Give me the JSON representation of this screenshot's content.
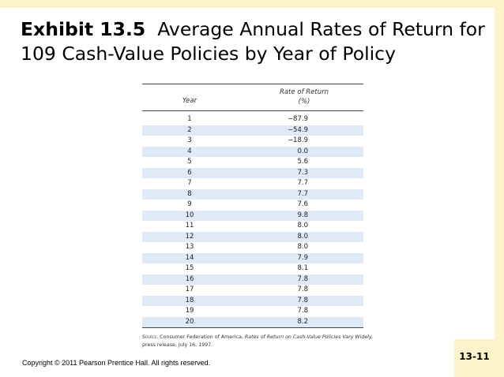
{
  "header": {
    "exhibit_label": "Exhibit 13.5",
    "title_text": "Average Annual Rates of Return for 109 Cash-Value Policies by Year of Policy"
  },
  "table": {
    "col_year": "Year",
    "col_rate_line1": "Rate of Return",
    "col_rate_line2": "(%)",
    "rows": [
      {
        "year": "1",
        "rate": "−87.9"
      },
      {
        "year": "2",
        "rate": "−54.9"
      },
      {
        "year": "3",
        "rate": "−18.9"
      },
      {
        "year": "4",
        "rate": "0.0"
      },
      {
        "year": "5",
        "rate": "5.6"
      },
      {
        "year": "6",
        "rate": "7.3"
      },
      {
        "year": "7",
        "rate": "7.7"
      },
      {
        "year": "8",
        "rate": "7.7"
      },
      {
        "year": "9",
        "rate": "7.6"
      },
      {
        "year": "10",
        "rate": "9.8"
      },
      {
        "year": "11",
        "rate": "8.0"
      },
      {
        "year": "12",
        "rate": "8.0"
      },
      {
        "year": "13",
        "rate": "8.0"
      },
      {
        "year": "14",
        "rate": "7.9"
      },
      {
        "year": "15",
        "rate": "8.1"
      },
      {
        "year": "16",
        "rate": "7.8"
      },
      {
        "year": "17",
        "rate": "7.8"
      },
      {
        "year": "18",
        "rate": "7.8"
      },
      {
        "year": "19",
        "rate": "7.8"
      },
      {
        "year": "20",
        "rate": "8.2"
      }
    ]
  },
  "source": {
    "label": "Source:",
    "text_before": "Consumer Federation of America,",
    "italic_title": "Rates of Return on Cash-Value Policies Vary Widely,",
    "text_after": "press release, July 16, 1997."
  },
  "footer": {
    "copyright": "Copyright © 2011 Pearson Prentice Hall. All rights reserved.",
    "page_number": "13-11"
  },
  "colors": {
    "accent_band": "#fdf3cb",
    "row_stripe": "#dfeaf6"
  }
}
